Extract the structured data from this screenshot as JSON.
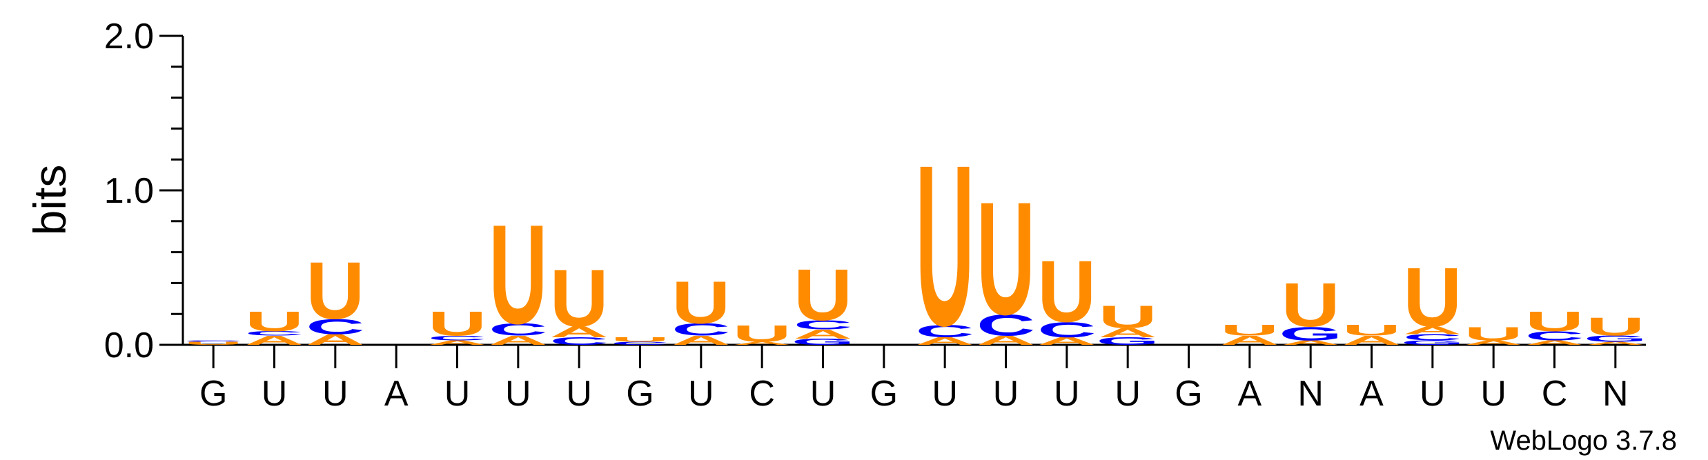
{
  "chart_data": {
    "type": "sequence-logo",
    "ylabel": "bits",
    "ylim": [
      0,
      2.0
    ],
    "yticks": [
      "0.0",
      "1.0",
      "2.0"
    ],
    "yticks_values": [
      0,
      1.0,
      2.0
    ],
    "positions": [
      {
        "label": "G",
        "stack": [
          {
            "letter": "U",
            "height": 0.02
          },
          {
            "letter": "C",
            "height": 0.01
          }
        ]
      },
      {
        "label": "U",
        "stack": [
          {
            "letter": "A",
            "height": 0.06
          },
          {
            "letter": "C",
            "height": 0.03
          },
          {
            "letter": "U",
            "height": 0.13
          }
        ]
      },
      {
        "label": "U",
        "stack": [
          {
            "letter": "A",
            "height": 0.07
          },
          {
            "letter": "C",
            "height": 0.1
          },
          {
            "letter": "U",
            "height": 0.38
          }
        ]
      },
      {
        "label": "A",
        "stack": []
      },
      {
        "label": "U",
        "stack": [
          {
            "letter": "A",
            "height": 0.03
          },
          {
            "letter": "C",
            "height": 0.03
          },
          {
            "letter": "U",
            "height": 0.16
          }
        ]
      },
      {
        "label": "U",
        "stack": [
          {
            "letter": "A",
            "height": 0.06
          },
          {
            "letter": "C",
            "height": 0.08
          },
          {
            "letter": "U",
            "height": 0.66
          }
        ]
      },
      {
        "label": "U",
        "stack": [
          {
            "letter": "C",
            "height": 0.05
          },
          {
            "letter": "A",
            "height": 0.07
          },
          {
            "letter": "U",
            "height": 0.38
          }
        ]
      },
      {
        "label": "G",
        "stack": [
          {
            "letter": "C",
            "height": 0.02
          },
          {
            "letter": "U",
            "height": 0.03
          }
        ]
      },
      {
        "label": "U",
        "stack": [
          {
            "letter": "A",
            "height": 0.06
          },
          {
            "letter": "C",
            "height": 0.08
          },
          {
            "letter": "U",
            "height": 0.28
          }
        ]
      },
      {
        "label": "C",
        "stack": [
          {
            "letter": "A",
            "height": 0.02
          },
          {
            "letter": "U",
            "height": 0.11
          }
        ]
      },
      {
        "label": "U",
        "stack": [
          {
            "letter": "G",
            "height": 0.04
          },
          {
            "letter": "A",
            "height": 0.06
          },
          {
            "letter": "C",
            "height": 0.06
          },
          {
            "letter": "U",
            "height": 0.34
          }
        ]
      },
      {
        "label": "G",
        "stack": []
      },
      {
        "label": "U",
        "stack": [
          {
            "letter": "A",
            "height": 0.05
          },
          {
            "letter": "C",
            "height": 0.08
          },
          {
            "letter": "U",
            "height": 1.07
          }
        ]
      },
      {
        "label": "U",
        "stack": [
          {
            "letter": "A",
            "height": 0.06
          },
          {
            "letter": "C",
            "height": 0.14
          },
          {
            "letter": "U",
            "height": 0.75
          }
        ]
      },
      {
        "label": "U",
        "stack": [
          {
            "letter": "A",
            "height": 0.05
          },
          {
            "letter": "C",
            "height": 0.1
          },
          {
            "letter": "U",
            "height": 0.41
          }
        ]
      },
      {
        "label": "U",
        "stack": [
          {
            "letter": "G",
            "height": 0.05
          },
          {
            "letter": "A",
            "height": 0.06
          },
          {
            "letter": "U",
            "height": 0.15
          }
        ]
      },
      {
        "label": "G",
        "stack": []
      },
      {
        "label": "A",
        "stack": [
          {
            "letter": "A",
            "height": 0.06
          },
          {
            "letter": "U",
            "height": 0.07
          }
        ]
      },
      {
        "label": "N",
        "stack": [
          {
            "letter": "A",
            "height": 0.03
          },
          {
            "letter": "G",
            "height": 0.09
          },
          {
            "letter": "U",
            "height": 0.29
          }
        ]
      },
      {
        "label": "A",
        "stack": [
          {
            "letter": "A",
            "height": 0.06
          },
          {
            "letter": "U",
            "height": 0.07
          }
        ]
      },
      {
        "label": "U",
        "stack": [
          {
            "letter": "G",
            "height": 0.03
          },
          {
            "letter": "C",
            "height": 0.04
          },
          {
            "letter": "A",
            "height": 0.05
          },
          {
            "letter": "U",
            "height": 0.39
          }
        ]
      },
      {
        "label": "U",
        "stack": [
          {
            "letter": "A",
            "height": 0.03
          },
          {
            "letter": "U",
            "height": 0.09
          }
        ]
      },
      {
        "label": "C",
        "stack": [
          {
            "letter": "A",
            "height": 0.03
          },
          {
            "letter": "C",
            "height": 0.06
          },
          {
            "letter": "U",
            "height": 0.13
          }
        ]
      },
      {
        "label": "N",
        "stack": [
          {
            "letter": "A",
            "height": 0.02
          },
          {
            "letter": "G",
            "height": 0.04
          },
          {
            "letter": "U",
            "height": 0.12
          }
        ]
      }
    ],
    "letter_colors": {
      "U": "#ff8c00",
      "A": "#ff8c00",
      "C": "#0000ff",
      "G": "#0000ff"
    }
  },
  "footer": {
    "credit": "WebLogo 3.7.8"
  }
}
